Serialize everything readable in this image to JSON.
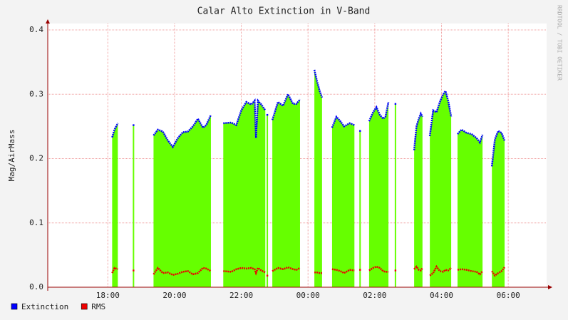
{
  "chart_data": {
    "type": "area",
    "title": "Calar Alto Extinction in V-Band",
    "ylabel": "Mag/AirMass",
    "watermark": "RRDTOOL / TOBI OETIKER",
    "grid": true,
    "legend": "bottom-left",
    "xlim": [
      16.2,
      31.15
    ],
    "ylim": [
      0,
      0.4
    ],
    "xticks": [
      {
        "value": 18,
        "label": "18:00"
      },
      {
        "value": 20,
        "label": "20:00"
      },
      {
        "value": 22,
        "label": "22:00"
      },
      {
        "value": 24,
        "label": "00:00"
      },
      {
        "value": 26,
        "label": "02:00"
      },
      {
        "value": 28,
        "label": "04:00"
      },
      {
        "value": 30,
        "label": "06:00"
      }
    ],
    "yticks": [
      {
        "value": 0,
        "label": "0.0"
      },
      0.1,
      0.2,
      0.3,
      0.4
    ],
    "x": [
      18.13,
      18.2,
      18.3,
      18.5,
      18.77,
      19.0,
      19.37,
      19.5,
      19.65,
      19.8,
      19.95,
      20.1,
      20.25,
      20.4,
      20.55,
      20.7,
      20.85,
      20.95,
      21.09,
      21.3,
      21.46,
      21.7,
      21.85,
      22.0,
      22.15,
      22.3,
      22.4,
      22.44,
      22.5,
      22.6,
      22.72,
      22.75,
      22.78,
      22.85,
      22.93,
      23.1,
      23.25,
      23.4,
      23.55,
      23.65,
      23.76,
      24.0,
      24.19,
      24.27,
      24.35,
      24.42,
      24.6,
      24.72,
      24.85,
      24.97,
      25.08,
      25.25,
      25.39,
      25.45,
      25.56,
      25.7,
      25.83,
      25.95,
      26.05,
      26.15,
      26.25,
      26.32,
      26.41,
      26.5,
      26.62,
      26.9,
      27.18,
      27.25,
      27.32,
      27.38,
      27.43,
      27.55,
      27.65,
      27.75,
      27.85,
      27.95,
      28.05,
      28.12,
      28.2,
      28.29,
      28.4,
      28.48,
      28.6,
      28.75,
      28.9,
      29.05,
      29.15,
      29.23,
      29.35,
      29.51,
      29.6,
      29.7,
      29.8,
      29.89
    ],
    "series": [
      {
        "name": "Extinction",
        "color": "#0000ff",
        "fill": "#66ff00",
        "values": [
          0.233,
          0.245,
          0.255,
          null,
          0.252,
          null,
          0.236,
          0.245,
          0.242,
          0.228,
          0.218,
          0.232,
          0.241,
          0.242,
          0.25,
          0.262,
          0.248,
          0.252,
          0.268,
          null,
          0.255,
          0.256,
          0.252,
          0.275,
          0.288,
          0.284,
          0.29,
          0.232,
          0.29,
          0.284,
          0.275,
          null,
          0.268,
          null,
          0.26,
          0.288,
          0.282,
          0.3,
          0.285,
          0.285,
          0.292,
          null,
          0.338,
          0.32,
          0.305,
          0.295,
          null,
          0.248,
          0.265,
          0.258,
          0.25,
          0.255,
          0.252,
          null,
          0.243,
          null,
          0.258,
          0.272,
          0.28,
          0.268,
          0.262,
          0.265,
          0.288,
          null,
          0.285,
          null,
          0.213,
          0.25,
          0.262,
          0.27,
          0.265,
          null,
          0.235,
          0.275,
          0.272,
          0.288,
          0.3,
          0.305,
          0.29,
          0.265,
          null,
          0.238,
          0.245,
          0.24,
          0.238,
          0.232,
          0.225,
          0.237,
          null,
          0.188,
          0.23,
          0.243,
          0.24,
          0.228
        ]
      },
      {
        "name": "RMS",
        "color": "#ee0000",
        "values": [
          0.022,
          0.03,
          0.028,
          null,
          0.026,
          null,
          0.02,
          0.03,
          0.022,
          0.023,
          0.019,
          0.021,
          0.024,
          0.025,
          0.02,
          0.022,
          0.03,
          0.029,
          0.025,
          null,
          0.025,
          0.024,
          0.028,
          0.03,
          0.029,
          0.03,
          0.028,
          0.022,
          0.03,
          0.026,
          0.023,
          null,
          0.018,
          null,
          0.025,
          0.03,
          0.028,
          0.031,
          0.028,
          0.027,
          0.03,
          null,
          0.023,
          0.023,
          0.022,
          0.022,
          null,
          0.028,
          0.027,
          0.025,
          0.022,
          0.027,
          0.026,
          null,
          0.027,
          null,
          0.026,
          0.03,
          0.032,
          0.03,
          0.025,
          0.024,
          0.024,
          null,
          0.026,
          null,
          0.028,
          0.032,
          0.027,
          0.026,
          0.03,
          null,
          0.018,
          0.022,
          0.032,
          0.025,
          0.024,
          0.027,
          0.026,
          0.03,
          null,
          0.027,
          0.028,
          0.027,
          0.025,
          0.024,
          0.02,
          0.025,
          null,
          0.025,
          0.018,
          0.022,
          0.025,
          0.031
        ]
      }
    ]
  }
}
